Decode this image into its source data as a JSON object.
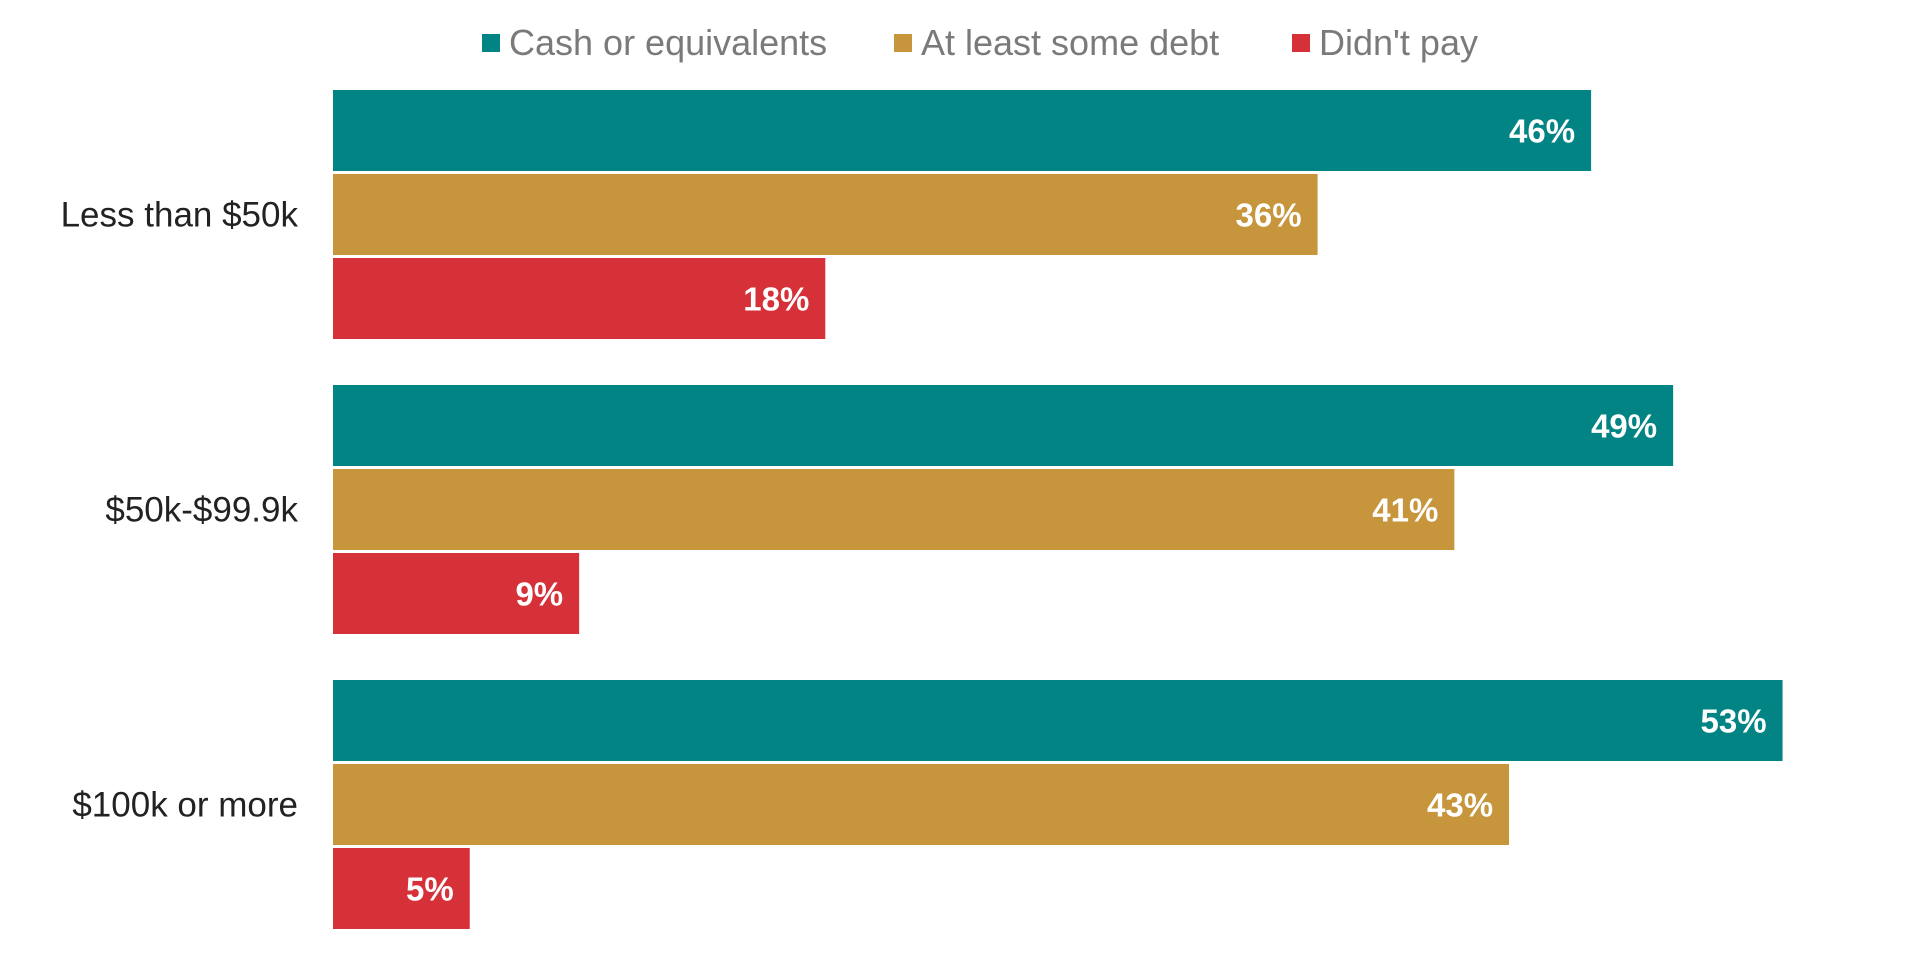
{
  "chart_data": {
    "type": "bar",
    "orientation": "horizontal",
    "categories": [
      "Less than $50k",
      "$50k-$99.9k",
      "$100k or more"
    ],
    "series": [
      {
        "name": "Cash or equivalents",
        "color": "#028484",
        "values": [
          46,
          49,
          53
        ]
      },
      {
        "name": "At least some debt",
        "color": "#c6953c",
        "values": [
          36,
          41,
          43
        ]
      },
      {
        "name": "Didn't pay",
        "color": "#d63138",
        "values": [
          18,
          9,
          5
        ]
      }
    ],
    "data_labels": [
      [
        "46%",
        "49%",
        "53%"
      ],
      [
        "36%",
        "41%",
        "43%"
      ],
      [
        "18%",
        "9%",
        "5%"
      ]
    ],
    "xlim": [
      0,
      60
    ],
    "grid": false,
    "legend_position": "top"
  }
}
